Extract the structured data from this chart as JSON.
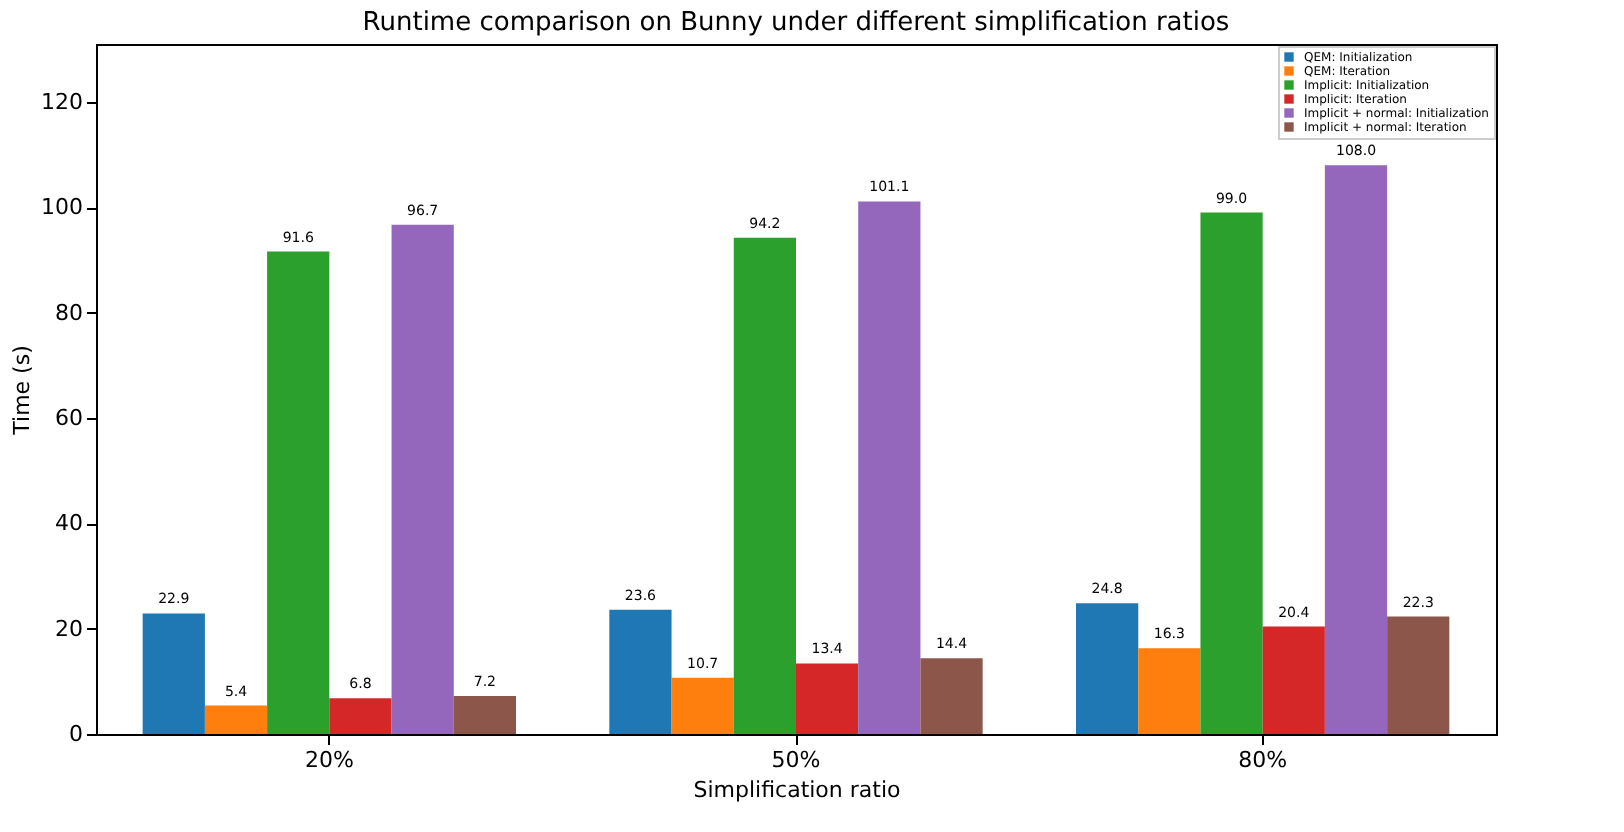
{
  "chart_data": {
    "type": "bar",
    "title": "Runtime comparison on Bunny under different simplification ratios",
    "xlabel": "Simplification ratio",
    "ylabel": "Time (s)",
    "categories": [
      "20%",
      "50%",
      "80%"
    ],
    "series": [
      {
        "name": "QEM: Initialization",
        "color": "#1f77b4",
        "values": [
          22.9,
          23.6,
          24.8
        ]
      },
      {
        "name": "QEM: Iteration",
        "color": "#ff7f0e",
        "values": [
          5.4,
          10.7,
          16.3
        ]
      },
      {
        "name": "Implicit: Initialization",
        "color": "#2ca02c",
        "values": [
          91.6,
          94.2,
          99.0
        ]
      },
      {
        "name": "Implicit: Iteration",
        "color": "#d62728",
        "values": [
          6.8,
          13.4,
          20.4
        ]
      },
      {
        "name": "Implicit + normal: Initialization",
        "color": "#9467bd",
        "values": [
          96.7,
          101.1,
          108.0
        ]
      },
      {
        "name": "Implicit + normal: Iteration",
        "color": "#8c564b",
        "values": [
          7.2,
          14.4,
          22.3
        ]
      }
    ],
    "value_labels": [
      [
        "22.9",
        "23.6",
        "24.8"
      ],
      [
        "5.4",
        "10.7",
        "16.3"
      ],
      [
        "91.6",
        "94.2",
        "99.0"
      ],
      [
        "6.8",
        "13.4",
        "20.4"
      ],
      [
        "96.7",
        "101.1",
        "108.0"
      ],
      [
        "7.2",
        "14.4",
        "22.3"
      ]
    ],
    "ylim": [
      0,
      131
    ],
    "yticks": [
      0,
      20,
      40,
      60,
      80,
      100,
      120
    ],
    "legend": "top right",
    "grid": false
  }
}
